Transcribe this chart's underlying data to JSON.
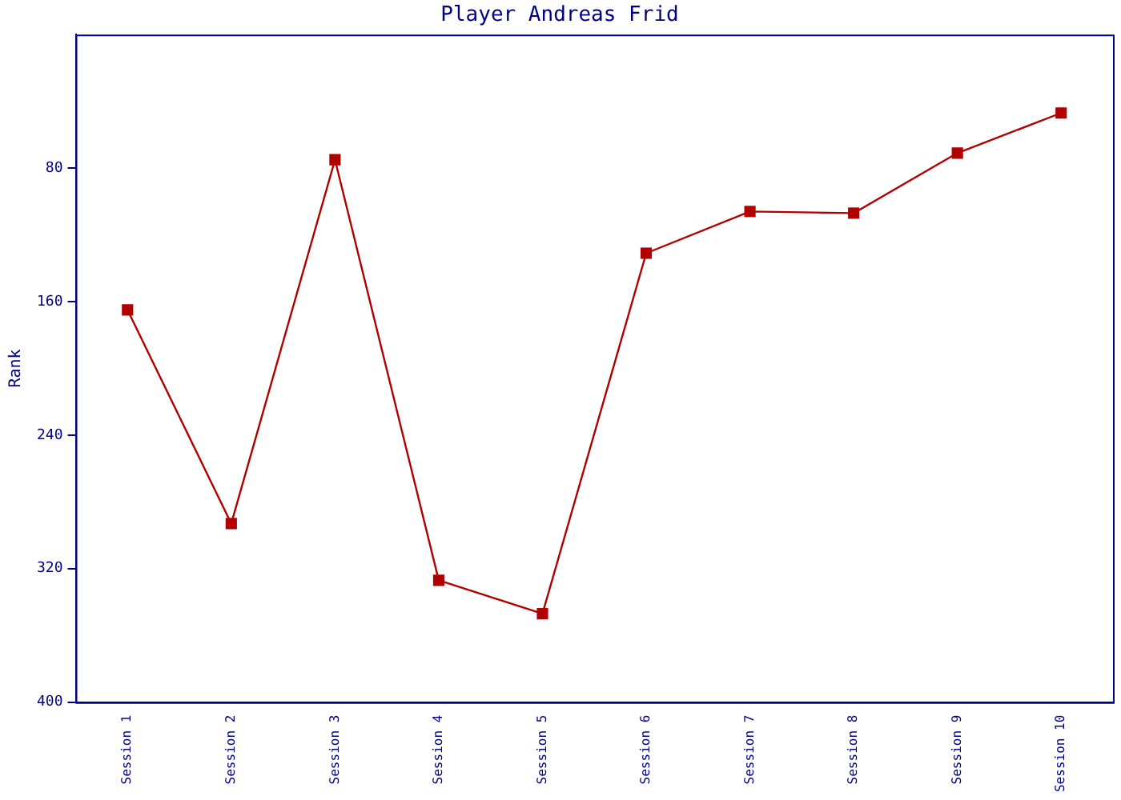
{
  "chart_data": {
    "type": "line",
    "title": "Player Andreas Frid",
    "ylabel": "Rank",
    "categories": [
      "Session 1",
      "Session 2",
      "Session 3",
      "Session 4",
      "Session 5",
      "Session 6",
      "Session 7",
      "Session 8",
      "Session 9",
      "Session 10"
    ],
    "series": [
      {
        "color": "#b00000",
        "values": [
          165,
          293,
          75,
          327,
          347,
          131,
          106,
          107,
          71,
          47
        ]
      }
    ],
    "ylim": [
      400,
      0
    ],
    "yticks": [
      80,
      160,
      240,
      320,
      400
    ],
    "marker": "square",
    "line_style": "solid",
    "grid": false,
    "legend": false
  }
}
